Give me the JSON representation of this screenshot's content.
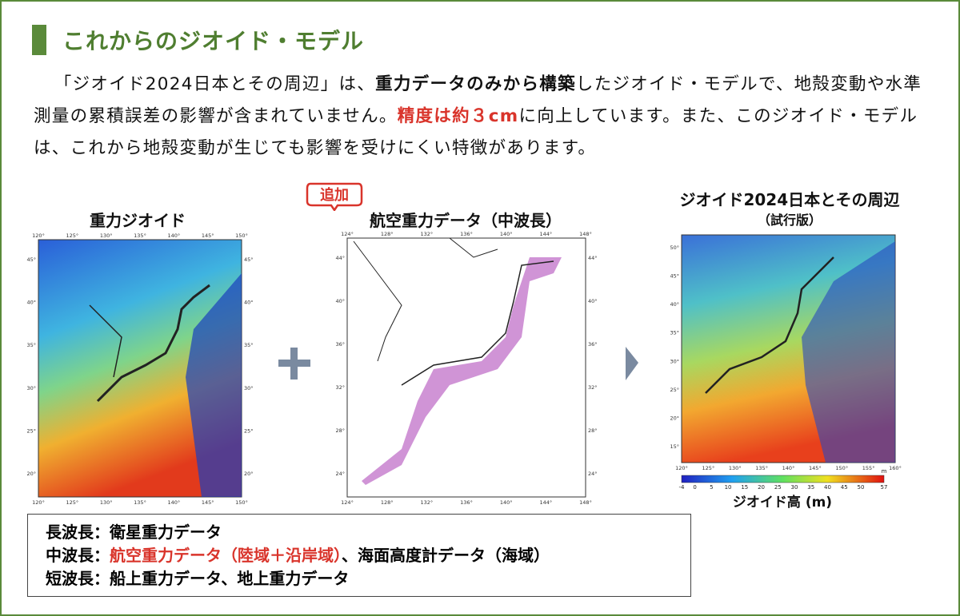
{
  "header": {
    "title": "これからのジオイド・モデル"
  },
  "paragraph": {
    "part1": "「ジオイド2024日本とその周辺」は、",
    "bold": "重力データのみから構築",
    "part2": "したジオイド・モデルで、地殻変動や水準測量の累積誤差の影響が含まれていません。",
    "red": "精度は約３cm",
    "part3": "に向上しています。また、このジオイド・モデルは、これから地殻変動が生じても影響を受けにくい特徴があります。"
  },
  "panels": [
    {
      "title": "重力ジオイド",
      "xticks": [
        "120°",
        "125°",
        "130°",
        "135°",
        "140°",
        "145°",
        "150°"
      ],
      "yticks": [
        "45°",
        "40°",
        "35°",
        "30°",
        "25°",
        "20°"
      ]
    },
    {
      "title": "航空重力データ（中波長）",
      "badge": "追加",
      "xticks": [
        "124°",
        "128°",
        "132°",
        "136°",
        "140°",
        "144°",
        "148°"
      ],
      "yticks": [
        "44°",
        "40°",
        "36°",
        "32°",
        "28°",
        "24°"
      ]
    },
    {
      "title": "ジオイド2024日本とその周辺",
      "subtitle": "（試行版）",
      "xticks": [
        "120°",
        "125°",
        "130°",
        "135°",
        "140°",
        "145°",
        "150°",
        "155°",
        "160°"
      ],
      "yticks": [
        "50°",
        "45°",
        "40°",
        "35°",
        "30°",
        "25°",
        "20°",
        "15°"
      ],
      "colorbar": {
        "ticks": [
          -4,
          0,
          5,
          10,
          15,
          20,
          25,
          30,
          35,
          40,
          45,
          50,
          57
        ],
        "unit": "m",
        "label": "ジオイド高 (m)"
      }
    }
  ],
  "legend": {
    "line1": "長波長：衛星重力データ",
    "line2a": "中波長：",
    "line2red": "航空重力データ（陸域＋沿岸域）",
    "line2b": "、海面高度計データ（海域）",
    "line3": "短波長：船上重力データ、地上重力データ"
  }
}
